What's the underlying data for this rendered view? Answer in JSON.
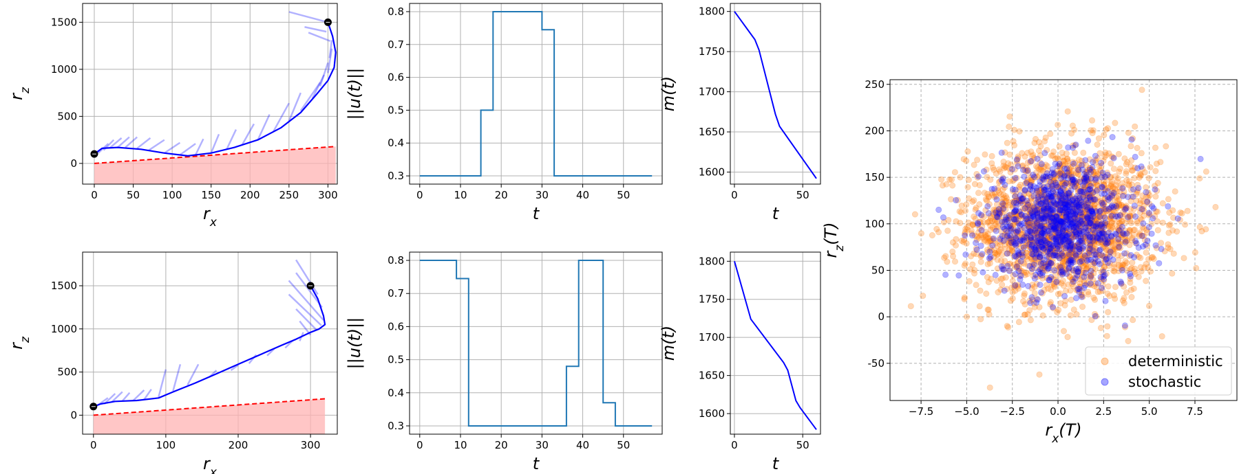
{
  "chart_data": [
    {
      "id": "traj_top",
      "type": "line",
      "xlabel": "r_x",
      "ylabel": "r_z",
      "xlim": [
        -15,
        312
      ],
      "ylim": [
        -220,
        1700
      ],
      "xticks": [
        0,
        50,
        100,
        150,
        200,
        250,
        300
      ],
      "yticks": [
        0,
        500,
        1000,
        1500
      ],
      "trajectory": {
        "x": [
          0,
          10,
          30,
          60,
          90,
          120,
          150,
          180,
          210,
          240,
          265,
          285,
          300,
          308,
          310,
          306,
          300
        ],
        "y": [
          100,
          160,
          170,
          150,
          110,
          80,
          110,
          170,
          250,
          380,
          540,
          730,
          880,
          1020,
          1180,
          1350,
          1500
        ]
      },
      "thrust_lines": [
        [
          5,
          110,
          18,
          210
        ],
        [
          12,
          140,
          25,
          250
        ],
        [
          20,
          165,
          35,
          270
        ],
        [
          30,
          170,
          45,
          280
        ],
        [
          40,
          170,
          55,
          280
        ],
        [
          55,
          160,
          72,
          270
        ],
        [
          70,
          140,
          90,
          250
        ],
        [
          90,
          110,
          110,
          220
        ],
        [
          110,
          90,
          130,
          210
        ],
        [
          130,
          90,
          140,
          260
        ],
        [
          150,
          110,
          160,
          310
        ],
        [
          170,
          150,
          182,
          360
        ],
        [
          190,
          200,
          205,
          420
        ],
        [
          210,
          250,
          225,
          520
        ],
        [
          230,
          340,
          250,
          640
        ],
        [
          250,
          450,
          265,
          750
        ],
        [
          265,
          560,
          290,
          860
        ],
        [
          280,
          690,
          295,
          940
        ],
        [
          290,
          820,
          300,
          1070
        ],
        [
          300,
          960,
          305,
          1220
        ],
        [
          302,
          1120,
          305,
          1310
        ],
        [
          303,
          1300,
          275,
          1390
        ],
        [
          298,
          1400,
          270,
          1450
        ],
        [
          300,
          1500,
          250,
          1610
        ]
      ],
      "markers": [
        {
          "x": 0,
          "y": 100
        },
        {
          "x": 300,
          "y": 1500
        }
      ],
      "constraint_line": {
        "x": [
          0,
          310
        ],
        "y": [
          0,
          180
        ]
      },
      "constraint_fill_bottom": -220
    },
    {
      "id": "traj_bottom",
      "type": "line",
      "xlabel": "r_x",
      "ylabel": "r_z",
      "xlim": [
        -15,
        337
      ],
      "ylim": [
        -220,
        1890
      ],
      "xticks": [
        0,
        100,
        200,
        300
      ],
      "yticks": [
        0,
        500,
        1000,
        1500
      ],
      "trajectory": {
        "x": [
          0,
          10,
          30,
          60,
          90,
          110,
          140,
          170,
          200,
          230,
          260,
          280,
          300,
          312,
          320,
          318,
          310,
          300
        ],
        "y": [
          100,
          130,
          160,
          170,
          200,
          270,
          370,
          480,
          590,
          700,
          810,
          880,
          960,
          1000,
          1050,
          1150,
          1350,
          1500
        ]
      },
      "thrust_lines": [
        [
          5,
          110,
          20,
          200
        ],
        [
          15,
          130,
          30,
          250
        ],
        [
          25,
          150,
          40,
          270
        ],
        [
          40,
          165,
          50,
          260
        ],
        [
          55,
          170,
          70,
          290
        ],
        [
          70,
          180,
          80,
          300
        ],
        [
          90,
          210,
          100,
          530
        ],
        [
          110,
          280,
          120,
          590
        ],
        [
          130,
          350,
          145,
          590
        ],
        [
          160,
          440,
          170,
          520
        ],
        [
          190,
          520,
          200,
          580
        ],
        [
          215,
          600,
          225,
          700
        ],
        [
          240,
          690,
          250,
          770
        ],
        [
          265,
          780,
          275,
          860
        ],
        [
          285,
          860,
          290,
          960
        ],
        [
          300,
          930,
          285,
          1090
        ],
        [
          308,
          990,
          280,
          1230
        ],
        [
          315,
          1040,
          270,
          1400
        ],
        [
          318,
          1100,
          270,
          1560
        ],
        [
          316,
          1250,
          280,
          1650
        ],
        [
          310,
          1400,
          280,
          1800
        ]
      ],
      "markers": [
        {
          "x": 0,
          "y": 100
        },
        {
          "x": 300,
          "y": 1500
        }
      ],
      "constraint_line": {
        "x": [
          0,
          320
        ],
        "y": [
          0,
          190
        ]
      },
      "constraint_fill_bottom": -220
    },
    {
      "id": "thrust_top",
      "type": "line",
      "xlabel": "t",
      "ylabel": "||u(t)||",
      "xlim": [
        -2.5,
        59.5
      ],
      "ylim": [
        0.275,
        0.825
      ],
      "xticks": [
        0,
        10,
        20,
        30,
        40,
        50
      ],
      "yticks": [
        0.3,
        0.4,
        0.5,
        0.6,
        0.7,
        0.8
      ],
      "x": [
        0,
        15,
        15,
        18,
        18,
        30,
        30,
        33,
        33,
        57
      ],
      "y": [
        0.3,
        0.3,
        0.5,
        0.5,
        0.8,
        0.8,
        0.745,
        0.745,
        0.3,
        0.3
      ]
    },
    {
      "id": "thrust_bottom",
      "type": "line",
      "xlabel": "t",
      "ylabel": "||u(t)||",
      "xlim": [
        -2.5,
        59.5
      ],
      "ylim": [
        0.275,
        0.825
      ],
      "xticks": [
        0,
        10,
        20,
        30,
        40,
        50
      ],
      "yticks": [
        0.3,
        0.4,
        0.5,
        0.6,
        0.7,
        0.8
      ],
      "x": [
        0,
        9,
        9,
        12,
        12,
        36,
        36,
        39,
        39,
        45,
        45,
        48,
        48,
        57
      ],
      "y": [
        0.8,
        0.8,
        0.745,
        0.745,
        0.3,
        0.3,
        0.48,
        0.48,
        0.8,
        0.8,
        0.37,
        0.37,
        0.3,
        0.3
      ]
    },
    {
      "id": "mass_top",
      "type": "line",
      "xlabel": "t",
      "ylabel": "m(t)",
      "xlim": [
        -3,
        63
      ],
      "ylim": [
        1585,
        1810
      ],
      "xticks": [
        0,
        50
      ],
      "yticks": [
        1600,
        1650,
        1700,
        1750,
        1800
      ],
      "x": [
        0,
        15,
        18,
        30,
        33,
        60
      ],
      "y": [
        1800,
        1765,
        1752,
        1672,
        1657,
        1592
      ]
    },
    {
      "id": "mass_bottom",
      "type": "line",
      "xlabel": "t",
      "ylabel": "m(t)",
      "xlim": [
        -3,
        63
      ],
      "ylim": [
        1573,
        1812
      ],
      "xticks": [
        0,
        50
      ],
      "yticks": [
        1600,
        1650,
        1700,
        1750,
        1800
      ],
      "x": [
        0,
        12,
        36,
        39,
        45,
        48,
        60
      ],
      "y": [
        1800,
        1724,
        1667,
        1657,
        1617,
        1608,
        1579
      ]
    },
    {
      "id": "scatter",
      "type": "scatter",
      "xlabel": "r_x(T)",
      "ylabel": "r_z(T)",
      "xlim": [
        -9.2,
        9.8
      ],
      "ylim": [
        -90,
        255
      ],
      "xticks": [
        -7.5,
        -5.0,
        -2.5,
        0.0,
        2.5,
        5.0,
        7.5
      ],
      "yticks": [
        -50,
        0,
        50,
        100,
        150,
        200,
        250
      ],
      "grid": "dashed",
      "legend": "lower right",
      "series": [
        {
          "name": "deterministic",
          "color": "#ff7f0e",
          "center": [
            0.3,
            100
          ],
          "std": [
            2.6,
            42
          ],
          "count": 2000
        },
        {
          "name": "stochastic",
          "color": "#0000ff",
          "center": [
            0.2,
            100
          ],
          "std": [
            2.1,
            32
          ],
          "count": 900
        }
      ]
    }
  ]
}
